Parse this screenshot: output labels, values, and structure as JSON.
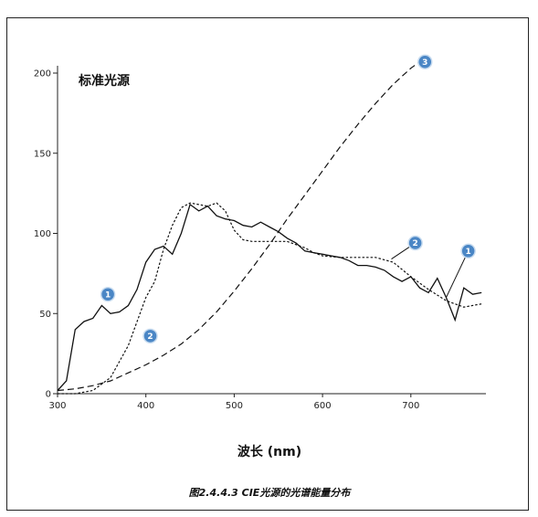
{
  "chart_data": {
    "type": "line",
    "title": "标准光源",
    "xlabel": "波长 (nm)",
    "caption": "图2.4.4.3 CIE光源的光谱能量分布",
    "xlim": [
      300,
      785
    ],
    "ylim": [
      0,
      200
    ],
    "xticks": [
      300,
      400,
      500,
      600,
      700
    ],
    "yticks": [
      0,
      50,
      100,
      150,
      200
    ],
    "grid": false,
    "series": [
      {
        "name": "1",
        "style": "solid",
        "x": [
          300,
          310,
          320,
          330,
          340,
          350,
          360,
          370,
          380,
          390,
          400,
          410,
          420,
          430,
          440,
          450,
          460,
          470,
          480,
          490,
          500,
          510,
          520,
          530,
          540,
          550,
          560,
          570,
          580,
          590,
          600,
          610,
          620,
          630,
          640,
          650,
          660,
          670,
          680,
          690,
          700,
          710,
          720,
          730,
          740,
          750,
          760,
          770,
          780
        ],
        "y": [
          2,
          8,
          40,
          45,
          47,
          55,
          50,
          51,
          55,
          65,
          82,
          90,
          92,
          87,
          100,
          118,
          114,
          117,
          111,
          109,
          108,
          105,
          104,
          107,
          104,
          101,
          97,
          94,
          89,
          88,
          87,
          86,
          85,
          83,
          80,
          80,
          79,
          77,
          73,
          70,
          73,
          66,
          63,
          72,
          60,
          46,
          66,
          62,
          63
        ]
      },
      {
        "name": "2",
        "style": "dotted",
        "x": [
          300,
          320,
          340,
          360,
          380,
          400,
          410,
          420,
          430,
          440,
          450,
          460,
          470,
          480,
          490,
          500,
          510,
          520,
          530,
          540,
          550,
          560,
          570,
          580,
          590,
          600,
          620,
          640,
          660,
          680,
          700,
          720,
          740,
          760,
          780
        ],
        "y": [
          0,
          0,
          2,
          10,
          30,
          60,
          70,
          90,
          105,
          116,
          119,
          118,
          117,
          119,
          114,
          102,
          96,
          95,
          95,
          95,
          95,
          95,
          93,
          91,
          88,
          86,
          85,
          85,
          85,
          82,
          73,
          65,
          58,
          54,
          56
        ]
      },
      {
        "name": "3",
        "style": "dashed",
        "x": [
          300,
          320,
          340,
          360,
          380,
          400,
          420,
          440,
          460,
          480,
          500,
          520,
          540,
          560,
          580,
          600,
          620,
          640,
          660,
          680,
          700,
          720
        ],
        "y": [
          2,
          3,
          5,
          8,
          13,
          18,
          24,
          31,
          40,
          51,
          64,
          78,
          93,
          109,
          124,
          139,
          154,
          168,
          181,
          193,
          203,
          211
        ]
      }
    ],
    "badges": [
      {
        "label": "1",
        "x": 357,
        "y": 62
      },
      {
        "label": "2",
        "x": 405,
        "y": 36
      },
      {
        "label": "2",
        "x": 705,
        "y": 94
      },
      {
        "label": "1",
        "x": 765,
        "y": 89
      },
      {
        "label": "3",
        "x": 716,
        "y": 207
      }
    ],
    "leaders": [
      {
        "from": [
          705,
          94
        ],
        "to": [
          678,
          84
        ]
      },
      {
        "from": [
          765,
          89
        ],
        "to": [
          740,
          60
        ]
      }
    ]
  }
}
